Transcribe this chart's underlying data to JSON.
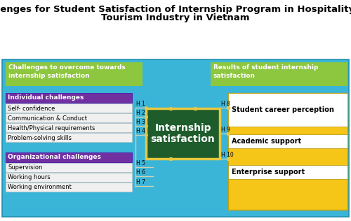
{
  "title_line1": "Challenges for Student Satisfaction of Internship Program in Hospitality and",
  "title_line2": "Tourism Industry in Vietnam",
  "title_fontsize": 9.5,
  "bg_color": "#3ab5d8",
  "left_header_color": "#8dc63f",
  "right_header_color": "#8dc63f",
  "left_header_text": "Challenges to overcome towards\ninternship satisfaction",
  "right_header_text": "Results of student internship\nsatisfaction",
  "indiv_header_color": "#7030a0",
  "indiv_header_text": "Individual challenges",
  "org_header_color": "#7030a0",
  "org_header_text": "Organizational challenges",
  "indiv_items": [
    "Self- confidence",
    "Communication & Conduct",
    "Health/Physical requirements",
    "Problem-solving skills"
  ],
  "org_items": [
    "Supervision",
    "Working hours",
    "Working environment"
  ],
  "center_box_color": "#1e5c2c",
  "center_box_border": "#e8c840",
  "center_text": "Internship\nsatisfaction",
  "right_items": [
    "Student career perception",
    "Academic support",
    "Enterprise support"
  ],
  "right_box_bg": "#f5c518",
  "hyp_labels": [
    "H 1",
    "H 2",
    "H 3",
    "H 4",
    "H 5",
    "H 6",
    "H 7",
    "H 8",
    "H 9",
    "H 10"
  ],
  "line_color": "#d0d0b0",
  "dot_color": "#e8c840",
  "item_box_color": "#f0f0f0",
  "item_box_border": "#c0c0c0",
  "white": "#ffffff",
  "yellow": "#f5c518"
}
